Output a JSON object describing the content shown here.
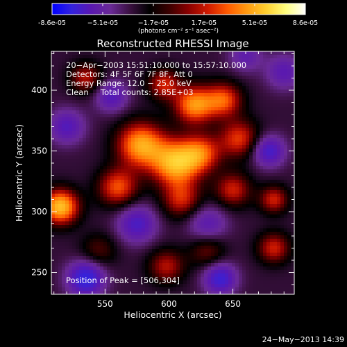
{
  "chart_data": {
    "type": "heatmap",
    "title": "Reconstructed RHESSI Image",
    "xlabel": "Heliocentric X (arcsec)",
    "ylabel": "Heliocentric Y (arcsec)",
    "xlim": [
      508,
      698
    ],
    "ylim": [
      232,
      432
    ],
    "x_ticks": [
      550,
      600,
      650
    ],
    "x_tick_labels": [
      "550",
      "600",
      "650"
    ],
    "y_ticks": [
      250,
      300,
      350,
      400
    ],
    "y_tick_labels": [
      "250",
      "300",
      "350",
      "400"
    ],
    "colorbar": {
      "min": -8.6e-05,
      "max": 8.6e-05,
      "tick_labels": [
        "-8.6e-05",
        "−5.1e-05",
        "−1.7e-05",
        "1.7e-05",
        "5.1e-05",
        "8.6e-05"
      ],
      "unit_label": "(photons cm⁻² s⁻¹ asec⁻²)",
      "colors": [
        "#0000ff",
        "#3322dd",
        "#5a18b0",
        "#6a2a96",
        "#3a1040",
        "#000000",
        "#3a0000",
        "#8a0000",
        "#d01a00",
        "#ff5a00",
        "#ff9a10",
        "#ffd030",
        "#ffff80",
        "#ffffff"
      ]
    },
    "annotations": [
      "20−Apr−2003 15:51:10.000 to 15:57:10.000",
      "Detectors: 4F 5F 6F 7F 8F, Att 0",
      "Energy Range: 12.0 − 25.0 keV",
      "Clean",
      "Total counts: 2.85E+03",
      "Position of Peak = [506,304]"
    ],
    "peak": [
      506,
      304
    ],
    "sources": [
      {
        "x": 620,
        "y": 388,
        "amp": 0.7,
        "s": 11
      },
      {
        "x": 643,
        "y": 392,
        "amp": 0.55,
        "s": 10
      },
      {
        "x": 596,
        "y": 405,
        "amp": 0.45,
        "s": 9
      },
      {
        "x": 578,
        "y": 355,
        "amp": 0.75,
        "s": 13
      },
      {
        "x": 605,
        "y": 340,
        "amp": 0.8,
        "s": 13
      },
      {
        "x": 625,
        "y": 348,
        "amp": 0.55,
        "s": 11
      },
      {
        "x": 655,
        "y": 360,
        "amp": 0.5,
        "s": 11
      },
      {
        "x": 560,
        "y": 320,
        "amp": 0.55,
        "s": 11
      },
      {
        "x": 610,
        "y": 310,
        "amp": 0.45,
        "s": 11
      },
      {
        "x": 650,
        "y": 318,
        "amp": 0.45,
        "s": 10
      },
      {
        "x": 515,
        "y": 304,
        "amp": 0.85,
        "s": 10
      },
      {
        "x": 535,
        "y": 410,
        "amp": 0.4,
        "s": 9
      },
      {
        "x": 682,
        "y": 310,
        "amp": 0.45,
        "s": 8
      },
      {
        "x": 682,
        "y": 270,
        "amp": 0.45,
        "s": 9
      },
      {
        "x": 598,
        "y": 255,
        "amp": 0.4,
        "s": 10
      },
      {
        "x": 545,
        "y": 268,
        "amp": 0.25,
        "s": 10
      },
      {
        "x": 630,
        "y": 268,
        "amp": 0.3,
        "s": 10
      },
      {
        "x": 520,
        "y": 370,
        "amp": -0.4,
        "s": 10
      },
      {
        "x": 690,
        "y": 415,
        "amp": -0.35,
        "s": 10
      },
      {
        "x": 535,
        "y": 245,
        "amp": -0.65,
        "s": 10
      },
      {
        "x": 640,
        "y": 245,
        "amp": -0.55,
        "s": 9
      },
      {
        "x": 678,
        "y": 350,
        "amp": -0.5,
        "s": 9
      },
      {
        "x": 575,
        "y": 290,
        "amp": -0.45,
        "s": 11
      },
      {
        "x": 630,
        "y": 290,
        "amp": -0.35,
        "s": 11
      },
      {
        "x": 555,
        "y": 395,
        "amp": -0.4,
        "s": 9
      },
      {
        "x": 660,
        "y": 428,
        "amp": -0.3,
        "s": 9
      }
    ]
  },
  "footer": {
    "timestamp": "24−May−2013 14:39"
  }
}
